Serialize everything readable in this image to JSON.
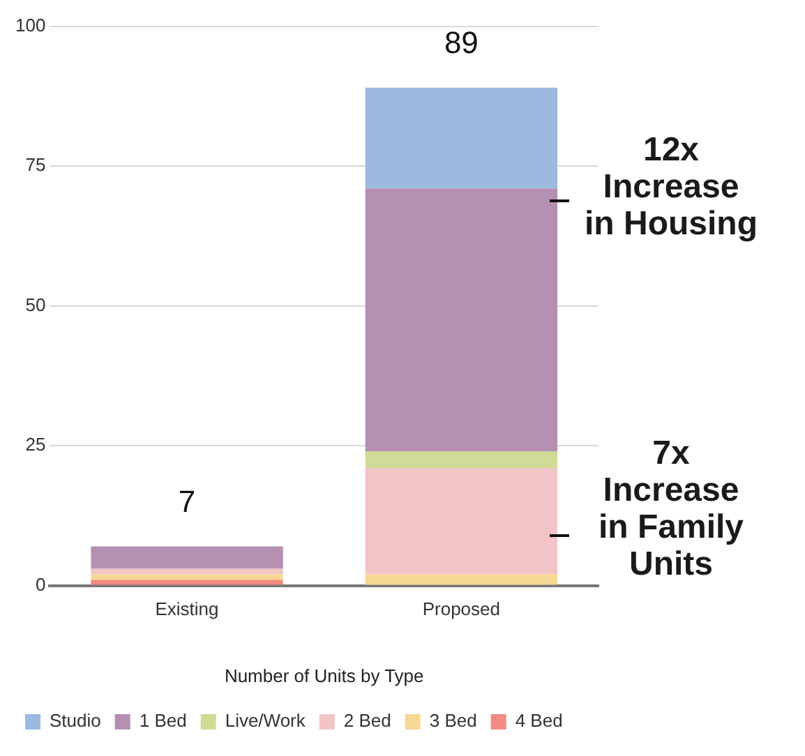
{
  "chart_data": {
    "type": "bar",
    "stacked": true,
    "xlabel": "Number of Units by Type",
    "categories": [
      "Existing",
      "Proposed"
    ],
    "series": [
      {
        "name": "4 Bed",
        "color": "#f28b82",
        "values": [
          1,
          0
        ]
      },
      {
        "name": "3 Bed",
        "color": "#f7d794",
        "values": [
          1,
          2
        ]
      },
      {
        "name": "2 Bed",
        "color": "#f2c4c6",
        "values": [
          1,
          19
        ]
      },
      {
        "name": "Live/Work",
        "color": "#d0dc96",
        "values": [
          0,
          3
        ]
      },
      {
        "name": "1 Bed",
        "color": "#b48fb2",
        "values": [
          4,
          47
        ]
      },
      {
        "name": "Studio",
        "color": "#9cb9e0",
        "values": [
          0,
          18
        ]
      }
    ],
    "totals": [
      "7",
      "89"
    ],
    "annotations": [
      "12x Increase in Housing",
      "7x Increase in Family Units"
    ],
    "ylim": [
      0,
      100
    ],
    "yticks": [
      0,
      25,
      50,
      75,
      100
    ],
    "grid": "y",
    "legend": "bottom"
  }
}
